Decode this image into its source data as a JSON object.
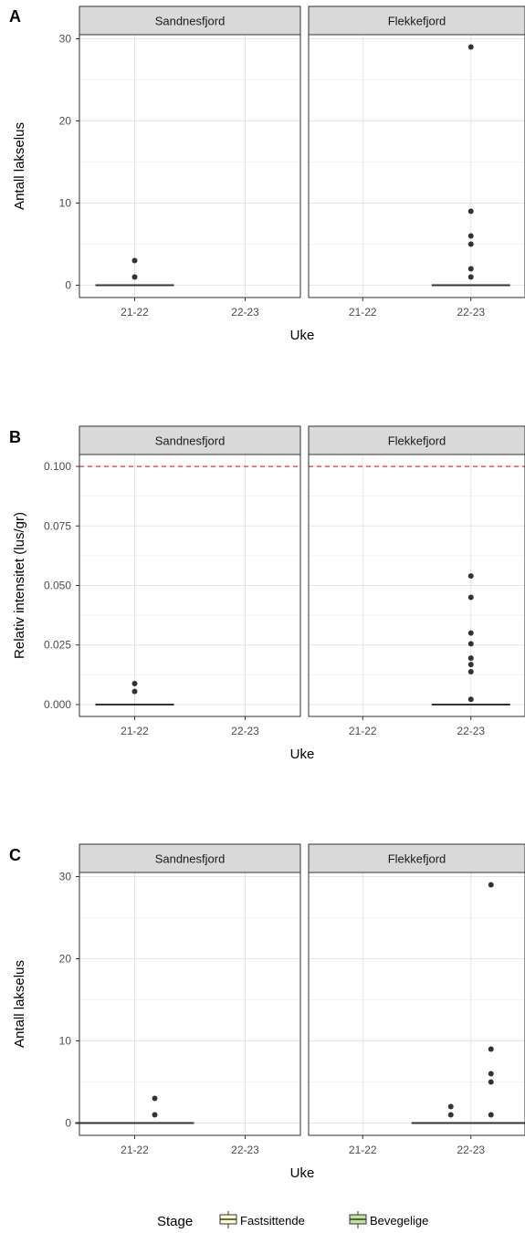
{
  "chart_data": [
    {
      "tag": "A",
      "type": "boxplot",
      "xlabel": "Uke",
      "ylabel": "Antall lakselus",
      "ylim": [
        -1.5,
        30.5
      ],
      "yticks": [
        0,
        10,
        20,
        30
      ],
      "yticklabels": [
        "0",
        "10",
        "20",
        "30"
      ],
      "categories": [
        "21-22",
        "22-23"
      ],
      "facets": [
        {
          "name": "Sandnesfjord",
          "boxes": [
            {
              "category": "21-22",
              "dodge": 0,
              "median": 0,
              "outliers": [
                1,
                3
              ]
            }
          ]
        },
        {
          "name": "Flekkefjord",
          "boxes": [
            {
              "category": "22-23",
              "dodge": 0,
              "median": 0,
              "outliers": [
                1,
                2,
                5,
                6,
                9,
                29
              ]
            }
          ]
        }
      ]
    },
    {
      "tag": "B",
      "type": "boxplot",
      "xlabel": "Uke",
      "ylabel": "Relativ intensitet (lus/gr)",
      "ylim": [
        -0.005,
        0.105
      ],
      "yticks": [
        0,
        0.025,
        0.05,
        0.075,
        0.1
      ],
      "yticklabels": [
        "0.000",
        "0.025",
        "0.050",
        "0.075",
        "0.100"
      ],
      "hline": {
        "value": 0.1,
        "color": "#e31a1c"
      },
      "categories": [
        "21-22",
        "22-23"
      ],
      "facets": [
        {
          "name": "Sandnesfjord",
          "boxes": [
            {
              "category": "21-22",
              "dodge": 0,
              "median": 0,
              "outliers": [
                0.0055,
                0.0088
              ]
            }
          ]
        },
        {
          "name": "Flekkefjord",
          "boxes": [
            {
              "category": "22-23",
              "dodge": 0,
              "median": 0,
              "outliers": [
                0.0022,
                0.0138,
                0.0168,
                0.0195,
                0.0255,
                0.03,
                0.045,
                0.054
              ]
            }
          ]
        }
      ]
    },
    {
      "tag": "C",
      "type": "boxplot",
      "xlabel": "Uke",
      "ylabel": "Antall lakselus",
      "ylim": [
        -1.5,
        30.5
      ],
      "yticks": [
        0,
        10,
        20,
        30
      ],
      "yticklabels": [
        "0",
        "10",
        "20",
        "30"
      ],
      "categories": [
        "21-22",
        "22-23"
      ],
      "facets": [
        {
          "name": "Sandnesfjord",
          "boxes": [
            {
              "category": "21-22",
              "dodge": -1,
              "stage": "Fastsittende",
              "median": 0,
              "outliers": []
            },
            {
              "category": "21-22",
              "dodge": 1,
              "stage": "Bevegelige",
              "median": 0,
              "outliers": [
                1,
                3
              ]
            }
          ]
        },
        {
          "name": "Flekkefjord",
          "boxes": [
            {
              "category": "22-23",
              "dodge": -1,
              "stage": "Fastsittende",
              "median": 0,
              "outliers": [
                1,
                2
              ]
            },
            {
              "category": "22-23",
              "dodge": 1,
              "stage": "Bevegelige",
              "median": 0,
              "outliers": [
                1,
                5,
                6,
                9,
                29
              ]
            }
          ]
        }
      ]
    }
  ],
  "legend": {
    "title": "Stage",
    "items": [
      {
        "label": "Fastsittende",
        "color": "#ffffcc"
      },
      {
        "label": "Bevegelige",
        "color": "#c2e699"
      }
    ]
  }
}
